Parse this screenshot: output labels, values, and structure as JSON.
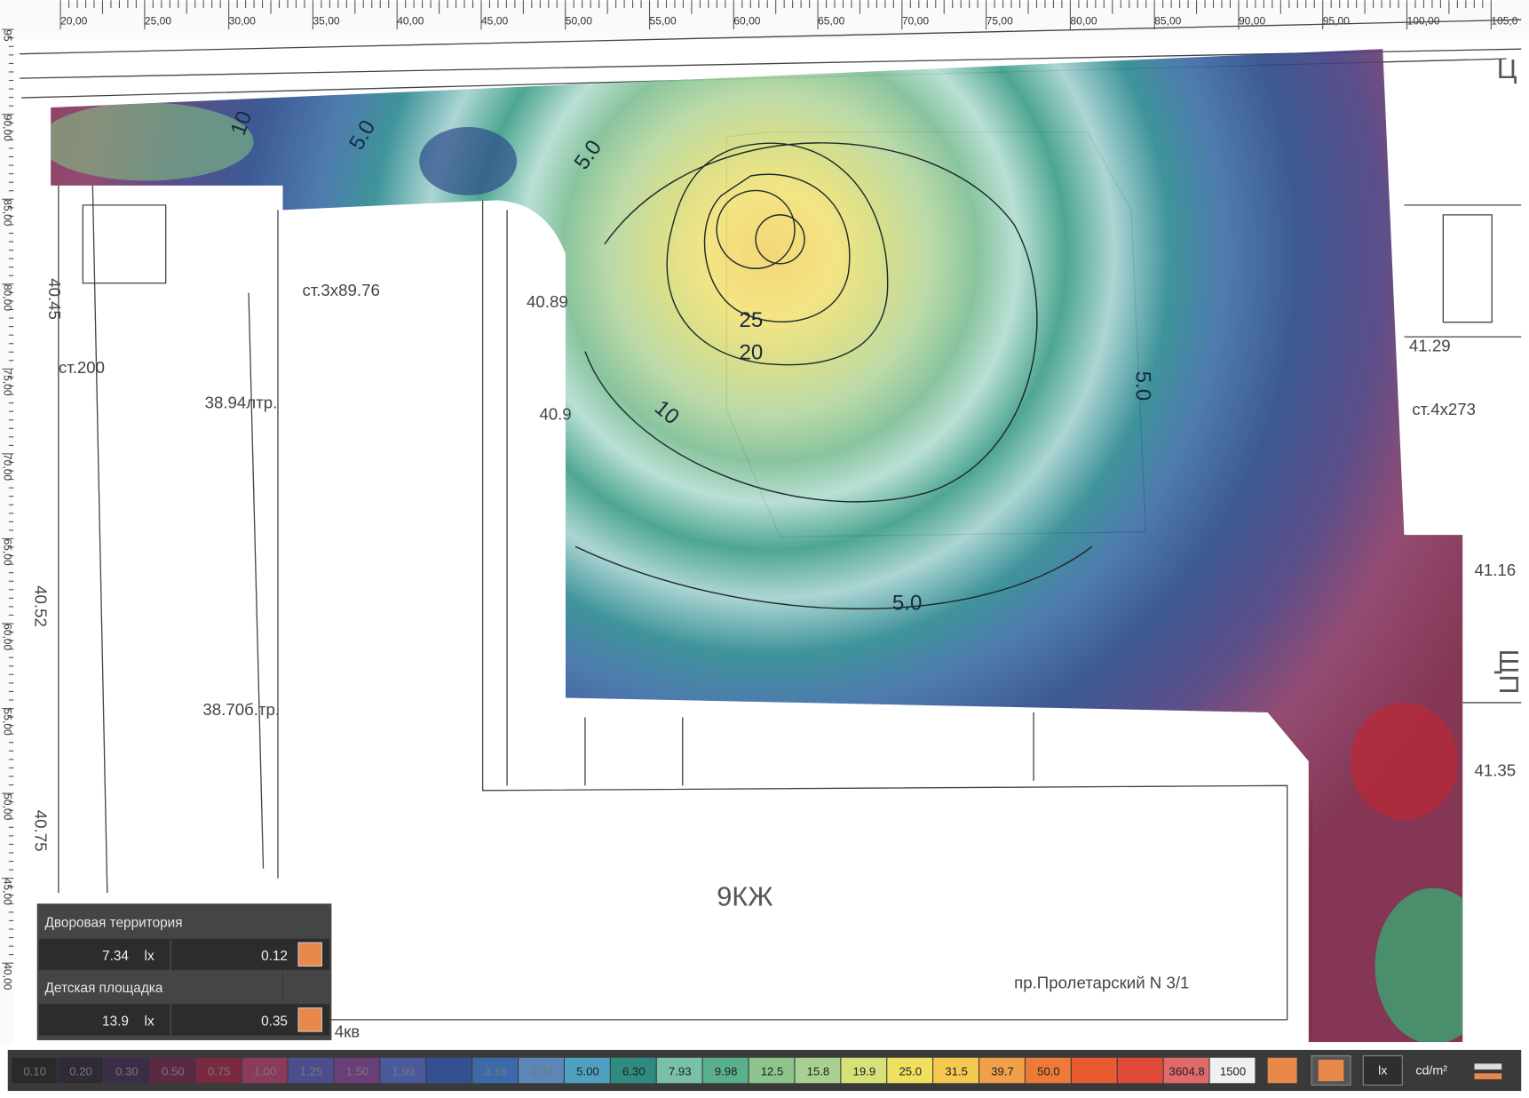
{
  "ruler": {
    "top": [
      "20,00",
      "25,00",
      "30,00",
      "35,00",
      "40,00",
      "45,00",
      "50,00",
      "55,00",
      "60,00",
      "65,00",
      "70,00",
      "75,00",
      "80,00",
      "85,00",
      "90,00",
      "95,00",
      "100,00",
      "105,0"
    ],
    "left": [
      "95",
      "90,00",
      "85,00",
      "80,00",
      "75,00",
      "70,00",
      "65,00",
      "60,00",
      "55,00",
      "50,00",
      "45,00",
      "40,00"
    ]
  },
  "plan": {
    "labels": [
      "ст.3x89.76",
      "40.45",
      "38.94лтр.",
      "ст.200",
      "40.89",
      "40.9",
      "38.70б.тр.",
      "9КЖ",
      "пр.Пролетарский N 3/1",
      "4кв",
      "ст.4x273",
      "41.29",
      "41.16",
      "41.35",
      "40.52",
      "40.75",
      "Ц",
      "ЩП"
    ],
    "contours": [
      "5.0",
      "5.0",
      "5.0",
      "10",
      "10",
      "20",
      "25",
      "5.0"
    ]
  },
  "panel": {
    "areas": [
      {
        "name": "Дворовая территория",
        "avg": "7.34",
        "unit": "lx",
        "ratio": "0.12"
      },
      {
        "name": "Детская площадка",
        "avg": "13.9",
        "unit": "lx",
        "ratio": "0.35"
      }
    ]
  },
  "legend": {
    "cells": [
      {
        "label": "0.10",
        "color": "#2a2a2a"
      },
      {
        "label": "0.20",
        "color": "#2f2a36"
      },
      {
        "label": "0.30",
        "color": "#3b2d48"
      },
      {
        "label": "0.50",
        "color": "#5a2a44"
      },
      {
        "label": "0.75",
        "color": "#7a2a40"
      },
      {
        "label": "1.00",
        "color": "#8a3a5c"
      },
      {
        "label": "1.25",
        "color": "#4b4d8c"
      },
      {
        "label": "1.50",
        "color": "#6a3f78"
      },
      {
        "label": "1.99",
        "color": "#4a5a9c"
      },
      {
        "color": "#34508e"
      },
      {
        "label": "3.16",
        "color": "#3c6aa8"
      },
      {
        "label": "3.97",
        "color": "#5b86b8"
      },
      {
        "label": "5.00",
        "color": "#4fa0c0"
      },
      {
        "label": "6.30",
        "color": "#2f8a80"
      },
      {
        "label": "7.93",
        "color": "#79c0a8"
      },
      {
        "label": "9.98",
        "color": "#5ab08c"
      },
      {
        "label": "12.5",
        "color": "#8cc48c"
      },
      {
        "label": "15.8",
        "color": "#a8d090"
      },
      {
        "label": "19.9",
        "color": "#d8e07a"
      },
      {
        "label": "25.0",
        "color": "#f0e060"
      },
      {
        "label": "31.5",
        "color": "#f5c850"
      },
      {
        "label": "39.7",
        "color": "#f0a048"
      },
      {
        "label": "50.0",
        "color": "#ee7a38"
      },
      {
        "color": "#e85a30"
      },
      {
        "color": "#e04a38"
      },
      {
        "label": "3604.8",
        "color": "#e06a6a"
      },
      {
        "label": "1500",
        "color": "#f0f0f0"
      }
    ],
    "units": [
      "lx",
      "cd/m²"
    ]
  }
}
